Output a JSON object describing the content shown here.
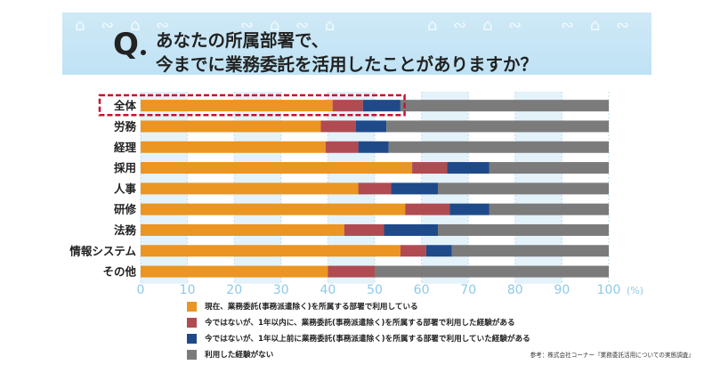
{
  "header": {
    "q_label": "Q",
    "question_line1": "あなたの所属部署で、",
    "question_line2": "今までに業務委託を活用したことがありますか？"
  },
  "chart_data": {
    "type": "bar",
    "orientation": "horizontal",
    "stacked": true,
    "categories": [
      "全体",
      "労務",
      "経理",
      "採用",
      "人事",
      "研修",
      "法務",
      "情報システム",
      "その他"
    ],
    "highlighted_category": "全体",
    "xlim": [
      0,
      100
    ],
    "x_ticks": [
      0,
      10,
      20,
      30,
      40,
      50,
      60,
      70,
      80,
      90,
      100
    ],
    "x_unit": "(%)",
    "series": [
      {
        "name": "現在、業務委託(事務派遣除く)を所属する部署で利用している",
        "color": "#eb9522",
        "values": [
          41.0,
          38.5,
          39.5,
          58.0,
          46.5,
          56.5,
          43.5,
          55.5,
          40.0
        ]
      },
      {
        "name": "今ではないが、1年以内に、業務委託(事務派遣除く)を所属する部署で利用した経験がある",
        "color": "#b04b52",
        "values": [
          6.5,
          7.5,
          7.0,
          7.5,
          7.0,
          9.5,
          8.5,
          5.5,
          10.0
        ]
      },
      {
        "name": "今ではないが、1年以上前に業務委託(事務派遣除く)を所属する部署で利用していた経験がある",
        "color": "#1f4a8a",
        "values": [
          8.0,
          6.5,
          6.5,
          9.0,
          10.0,
          8.5,
          11.5,
          5.5,
          0
        ]
      },
      {
        "name": "利用した経験がない",
        "color": "#7b7b7b",
        "values": [
          44.5,
          47.5,
          47.0,
          25.5,
          36.5,
          25.5,
          36.5,
          33.5,
          50.0
        ]
      }
    ],
    "source": "参考：株式会社コーナー『業務委託活用についての実態調査』"
  }
}
